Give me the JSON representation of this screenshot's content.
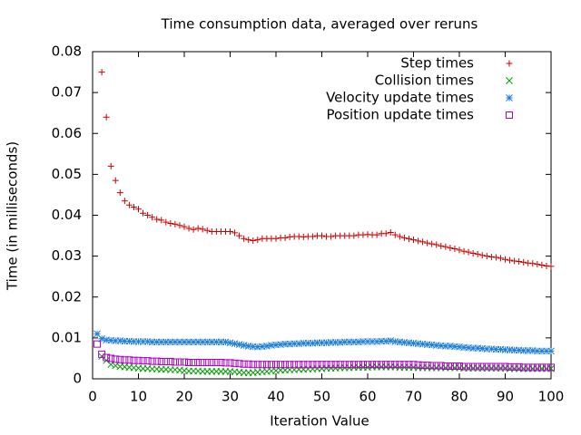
{
  "chart_data": {
    "type": "scatter",
    "title": "Time consumption data, averaged over reruns",
    "x_label": "Iteration Value",
    "y_label": "Time (in milliseconds)",
    "xlim": [
      0,
      100
    ],
    "xticks": [
      0,
      10,
      20,
      30,
      40,
      50,
      60,
      70,
      80,
      90,
      100
    ],
    "ylim": [
      0,
      0.08
    ],
    "yticks": [
      0,
      0.01,
      0.02,
      0.03,
      0.04,
      0.05,
      0.06,
      0.07,
      0.08
    ],
    "legend": "top-right",
    "x": [
      1,
      2,
      3,
      4,
      5,
      6,
      7,
      8,
      9,
      10,
      11,
      12,
      13,
      14,
      15,
      16,
      17,
      18,
      19,
      20,
      21,
      22,
      23,
      24,
      25,
      26,
      27,
      28,
      29,
      30,
      31,
      32,
      33,
      34,
      35,
      36,
      37,
      38,
      39,
      40,
      41,
      42,
      43,
      44,
      45,
      46,
      47,
      48,
      49,
      50,
      51,
      52,
      53,
      54,
      55,
      56,
      57,
      58,
      59,
      60,
      61,
      62,
      63,
      64,
      65,
      66,
      67,
      68,
      69,
      70,
      71,
      72,
      73,
      74,
      75,
      76,
      77,
      78,
      79,
      80,
      81,
      82,
      83,
      84,
      85,
      86,
      87,
      88,
      89,
      90,
      91,
      92,
      93,
      94,
      95,
      96,
      97,
      98,
      99,
      100
    ],
    "series": [
      {
        "name": "Step times",
        "color": "#cc0000",
        "marker": "plus",
        "values": [
          null,
          0.075,
          0.064,
          0.052,
          0.0485,
          0.0455,
          0.0435,
          0.0425,
          0.042,
          0.0415,
          0.0405,
          0.04,
          0.0395,
          0.039,
          0.0388,
          0.0383,
          0.038,
          0.0378,
          0.0375,
          0.0372,
          0.0368,
          0.0365,
          0.0368,
          0.0366,
          0.0363,
          0.036,
          0.036,
          0.036,
          0.036,
          0.036,
          0.0357,
          0.035,
          0.0343,
          0.034,
          0.0338,
          0.034,
          0.0343,
          0.0343,
          0.0343,
          0.0343,
          0.0345,
          0.0345,
          0.0347,
          0.0348,
          0.0348,
          0.0347,
          0.0348,
          0.0348,
          0.035,
          0.035,
          0.0348,
          0.0348,
          0.035,
          0.035,
          0.035,
          0.035,
          0.035,
          0.0352,
          0.0352,
          0.0353,
          0.0352,
          0.0352,
          0.0355,
          0.0355,
          0.0358,
          0.0352,
          0.0348,
          0.0345,
          0.0342,
          0.034,
          0.0337,
          0.0335,
          0.0332,
          0.033,
          0.0328,
          0.0325,
          0.0323,
          0.032,
          0.0318,
          0.0315,
          0.0312,
          0.031,
          0.0307,
          0.0305,
          0.0302,
          0.03,
          0.0298,
          0.0297,
          0.0295,
          0.0292,
          0.029,
          0.0288,
          0.0287,
          0.0285,
          0.0283,
          0.0282,
          0.028,
          0.0278,
          0.0276,
          0.0275
        ]
      },
      {
        "name": "Collision times",
        "color": "#00a000",
        "marker": "cross",
        "values": [
          null,
          0.0055,
          0.0045,
          0.0035,
          0.0032,
          0.003,
          0.0029,
          0.0028,
          0.0027,
          0.0026,
          0.0025,
          0.0025,
          0.0024,
          0.0024,
          0.0023,
          0.0023,
          0.0022,
          0.0022,
          0.0021,
          0.002,
          0.0019,
          0.0019,
          0.0019,
          0.0018,
          0.0018,
          0.0018,
          0.0018,
          0.0018,
          0.0018,
          0.0018,
          0.0017,
          0.0016,
          0.0015,
          0.0015,
          0.0015,
          0.0016,
          0.0017,
          0.0018,
          0.0019,
          0.002,
          0.0021,
          0.0021,
          0.0022,
          0.0022,
          0.0023,
          0.0023,
          0.0024,
          0.0024,
          0.0025,
          0.0025,
          0.0026,
          0.0026,
          0.0026,
          0.0027,
          0.0027,
          0.0027,
          0.0028,
          0.0028,
          0.0028,
          0.0028,
          0.0029,
          0.0029,
          0.0029,
          0.0029,
          0.0029,
          0.0029,
          0.0028,
          0.0028,
          0.0028,
          0.0028,
          0.0027,
          0.0027,
          0.0027,
          0.0027,
          0.0027,
          0.0027,
          0.0027,
          0.0027,
          0.0027,
          0.0027,
          0.0026,
          0.0026,
          0.0026,
          0.0026,
          0.0026,
          0.0026,
          0.0026,
          0.0026,
          0.0026,
          0.0026,
          0.0025,
          0.0025,
          0.0025,
          0.0025,
          0.0025,
          0.0025,
          0.0025,
          0.0025,
          0.0025,
          0.0025
        ]
      },
      {
        "name": "Velocity update times",
        "color": "#1e7fd8",
        "marker": "star",
        "values": [
          0.011,
          0.0098,
          0.0095,
          0.0094,
          0.0093,
          0.0093,
          0.0092,
          0.0092,
          0.0091,
          0.0091,
          0.0091,
          0.0091,
          0.009,
          0.009,
          0.009,
          0.009,
          0.009,
          0.009,
          0.009,
          0.009,
          0.009,
          0.009,
          0.009,
          0.009,
          0.009,
          0.009,
          0.009,
          0.009,
          0.009,
          0.0088,
          0.0086,
          0.0084,
          0.0082,
          0.008,
          0.0079,
          0.0078,
          0.0079,
          0.008,
          0.0082,
          0.0083,
          0.0084,
          0.0085,
          0.0085,
          0.0086,
          0.0086,
          0.0087,
          0.0087,
          0.0087,
          0.0088,
          0.0088,
          0.0088,
          0.0089,
          0.0089,
          0.0089,
          0.009,
          0.009,
          0.009,
          0.009,
          0.0091,
          0.0091,
          0.0091,
          0.0091,
          0.0092,
          0.0092,
          0.0093,
          0.0091,
          0.009,
          0.0089,
          0.0088,
          0.0087,
          0.0086,
          0.0085,
          0.0084,
          0.0083,
          0.0082,
          0.0081,
          0.008,
          0.008,
          0.0079,
          0.0078,
          0.0077,
          0.0076,
          0.0075,
          0.0075,
          0.0074,
          0.0073,
          0.0073,
          0.0072,
          0.0072,
          0.0071,
          0.0071,
          0.007,
          0.007,
          0.0069,
          0.0069,
          0.0069,
          0.0068,
          0.0068,
          0.0068,
          0.0068
        ]
      },
      {
        "name": "Position update times",
        "color": "#b000c8",
        "marker": "square",
        "values": [
          0.0085,
          0.006,
          0.0052,
          0.005,
          0.0048,
          0.0047,
          0.0046,
          0.0046,
          0.0045,
          0.0045,
          0.0044,
          0.0044,
          0.0043,
          0.0043,
          0.0042,
          0.0042,
          0.0042,
          0.0041,
          0.0041,
          0.0041,
          0.004,
          0.004,
          0.004,
          0.004,
          0.004,
          0.004,
          0.004,
          0.004,
          0.0039,
          0.0039,
          0.0038,
          0.0037,
          0.0036,
          0.0036,
          0.0035,
          0.0035,
          0.0035,
          0.0035,
          0.0035,
          0.0035,
          0.0035,
          0.0035,
          0.0035,
          0.0035,
          0.0035,
          0.0035,
          0.0035,
          0.0035,
          0.0035,
          0.0035,
          0.0035,
          0.0035,
          0.0035,
          0.0035,
          0.0035,
          0.0035,
          0.0035,
          0.0035,
          0.0035,
          0.0035,
          0.0035,
          0.0035,
          0.0035,
          0.0035,
          0.0035,
          0.0035,
          0.0035,
          0.0035,
          0.0035,
          0.0035,
          0.0034,
          0.0033,
          0.0033,
          0.0032,
          0.0032,
          0.0032,
          0.0031,
          0.0031,
          0.0031,
          0.0031,
          0.003,
          0.003,
          0.003,
          0.003,
          0.003,
          0.003,
          0.003,
          0.003,
          0.003,
          0.003,
          0.0029,
          0.0029,
          0.0029,
          0.0028,
          0.0028,
          0.0028,
          0.0028,
          0.0028,
          0.0028,
          0.0028
        ]
      }
    ]
  }
}
